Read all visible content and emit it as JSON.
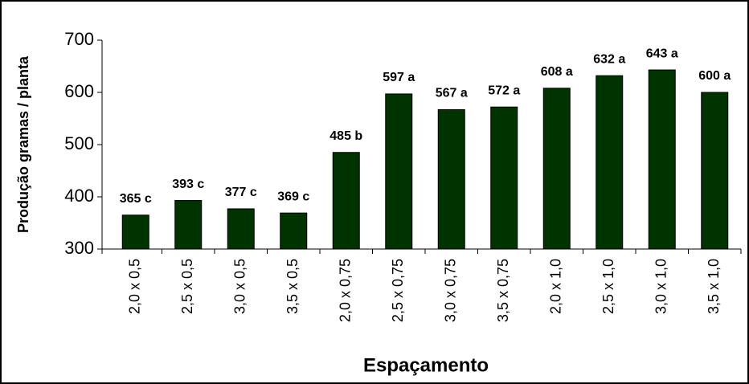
{
  "chart_data": {
    "type": "bar",
    "x_label": "Espaçamento",
    "y_label": "Produção gramas / planta",
    "categories": [
      "2,0 x 0,5",
      "2,5 x 0,5",
      "3,0 x 0,5",
      "3,5 x 0,5",
      "2,0 x 0,75",
      "2,5 x 0,75",
      "3,0 x 0,75",
      "3,5 x 0,75",
      "2,0 x 1,0",
      "2,5 x 1,0",
      "3,0 x 1,0",
      "3,5 x 1,0"
    ],
    "values": [
      365,
      393,
      377,
      369,
      485,
      597,
      567,
      572,
      608,
      632,
      643,
      600
    ],
    "value_labels": [
      "365 c",
      "393 c",
      "377 c",
      "369 c",
      "485 b",
      "597 a",
      "567 a",
      "572 a",
      "608 a",
      "632 a",
      "643 a",
      "600 a"
    ],
    "color": "#003300",
    "ylim": [
      300,
      700
    ],
    "yticks": [
      300,
      400,
      500,
      600,
      700
    ]
  }
}
